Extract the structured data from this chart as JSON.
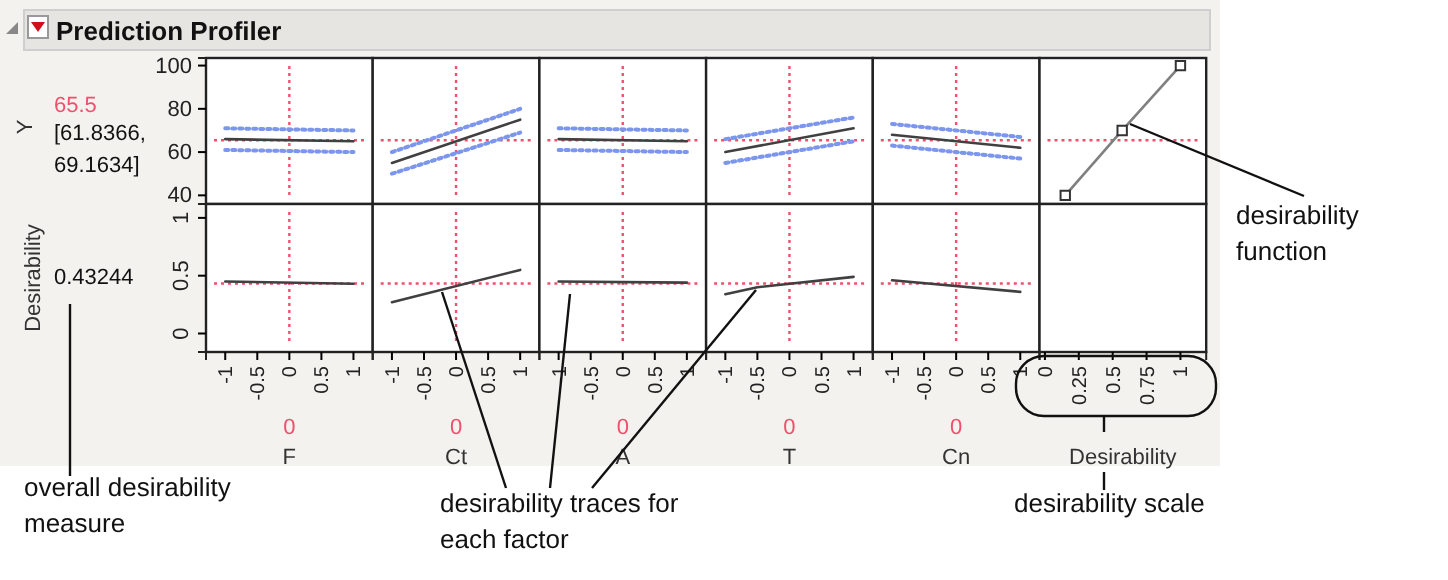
{
  "chart_data": [
    {
      "type": "line",
      "title": "Prediction Profiler",
      "ylabel": "Y",
      "annotations": [
        "65.5",
        "[61.8366, 69.1634]"
      ],
      "xlim": [
        -1.3,
        1.3
      ],
      "xticks": [
        -1,
        -0.5,
        0,
        0.5,
        1
      ],
      "ylim": [
        36,
        103.5
      ],
      "yticks": [
        40,
        60,
        80,
        100
      ],
      "tick_labels": "y",
      "ref_lines": [
        {
          "axis": "x",
          "value": 0,
          "color": "#f0506e",
          "line_style": "dotted"
        },
        {
          "axis": "y",
          "value": 65.5,
          "color": "#f0506e",
          "line_style": "dotted"
        }
      ],
      "series": [
        {
          "color": "#404040",
          "x": [
            -1,
            1
          ],
          "values": [
            66,
            65
          ]
        },
        {
          "color": "#7b96ec",
          "line_style": "dotted",
          "x": [
            -1,
            1
          ],
          "values": [
            71,
            70
          ]
        },
        {
          "color": "#7b96ec",
          "line_style": "dotted",
          "x": [
            -1,
            1
          ],
          "values": [
            61,
            60
          ]
        }
      ]
    },
    {
      "type": "line",
      "xlim": [
        -1.3,
        1.3
      ],
      "xticks": [
        -1,
        -0.5,
        0,
        0.5,
        1
      ],
      "ylim": [
        36,
        103.5
      ],
      "yticks": [
        40,
        60,
        80,
        100
      ],
      "tick_labels": false,
      "ref_lines": [
        {
          "axis": "x",
          "value": 0,
          "color": "#f0506e",
          "line_style": "dotted"
        },
        {
          "axis": "y",
          "value": 65.5,
          "color": "#f0506e",
          "line_style": "dotted"
        }
      ],
      "series": [
        {
          "color": "#404040",
          "x": [
            -1,
            1
          ],
          "values": [
            55,
            75
          ]
        },
        {
          "color": "#7b96ec",
          "line_style": "dotted",
          "x": [
            -1,
            1
          ],
          "values": [
            60,
            80
          ]
        },
        {
          "color": "#7b96ec",
          "line_style": "dotted",
          "x": [
            -1,
            1
          ],
          "values": [
            50,
            69
          ]
        }
      ]
    },
    {
      "type": "line",
      "xlim": [
        -1.3,
        1.3
      ],
      "xticks": [
        -1,
        -0.5,
        0,
        0.5,
        1
      ],
      "ylim": [
        36,
        103.5
      ],
      "yticks": [
        40,
        60,
        80,
        100
      ],
      "tick_labels": false,
      "ref_lines": [
        {
          "axis": "x",
          "value": 0,
          "color": "#f0506e",
          "line_style": "dotted"
        },
        {
          "axis": "y",
          "value": 65.5,
          "color": "#f0506e",
          "line_style": "dotted"
        }
      ],
      "series": [
        {
          "color": "#404040",
          "x": [
            -1,
            1
          ],
          "values": [
            66,
            65
          ]
        },
        {
          "color": "#7b96ec",
          "line_style": "dotted",
          "x": [
            -1,
            1
          ],
          "values": [
            71,
            70
          ]
        },
        {
          "color": "#7b96ec",
          "line_style": "dotted",
          "x": [
            -1,
            1
          ],
          "values": [
            61,
            60
          ]
        }
      ]
    },
    {
      "type": "line",
      "xlim": [
        -1.3,
        1.3
      ],
      "xticks": [
        -1,
        -0.5,
        0,
        0.5,
        1
      ],
      "ylim": [
        36,
        103.5
      ],
      "yticks": [
        40,
        60,
        80,
        100
      ],
      "tick_labels": false,
      "ref_lines": [
        {
          "axis": "x",
          "value": 0,
          "color": "#f0506e",
          "line_style": "dotted"
        },
        {
          "axis": "y",
          "value": 65.5,
          "color": "#f0506e",
          "line_style": "dotted"
        }
      ],
      "series": [
        {
          "color": "#404040",
          "x": [
            -1,
            1
          ],
          "values": [
            60,
            71
          ]
        },
        {
          "color": "#7b96ec",
          "line_style": "dotted",
          "x": [
            -1,
            1
          ],
          "values": [
            66,
            76
          ]
        },
        {
          "color": "#7b96ec",
          "line_style": "dotted",
          "x": [
            -1,
            1
          ],
          "values": [
            55,
            65
          ]
        }
      ]
    },
    {
      "type": "line",
      "xlim": [
        -1.3,
        1.3
      ],
      "xticks": [
        -1,
        -0.5,
        0,
        0.5,
        1
      ],
      "ylim": [
        36,
        103.5
      ],
      "yticks": [
        40,
        60,
        80,
        100
      ],
      "tick_labels": false,
      "ref_lines": [
        {
          "axis": "x",
          "value": 0,
          "color": "#f0506e",
          "line_style": "dotted"
        },
        {
          "axis": "y",
          "value": 65.5,
          "color": "#f0506e",
          "line_style": "dotted"
        }
      ],
      "series": [
        {
          "color": "#404040",
          "x": [
            -1,
            1
          ],
          "values": [
            68,
            62
          ]
        },
        {
          "color": "#7b96ec",
          "line_style": "dotted",
          "x": [
            -1,
            1
          ],
          "values": [
            73,
            67
          ]
        },
        {
          "color": "#7b96ec",
          "line_style": "dotted",
          "x": [
            -1,
            1
          ],
          "values": [
            63,
            57
          ]
        }
      ]
    },
    {
      "type": "line",
      "annotations": [
        "desirability function"
      ],
      "xlim": [
        -0.04,
        1.19
      ],
      "xticks": [
        0,
        0.25,
        0.5,
        0.75,
        1
      ],
      "ylim": [
        36,
        103.5
      ],
      "yticks": [
        40,
        60,
        80,
        100
      ],
      "tick_labels": false,
      "marker": "square",
      "ref_lines": [
        {
          "axis": "y",
          "value": 65.5,
          "color": "#f0506e",
          "line_style": "dotted"
        }
      ],
      "series": [
        {
          "color": "#808080",
          "x": [
            0.15,
            0.57,
            1
          ],
          "values": [
            40,
            70,
            100
          ]
        }
      ]
    },
    {
      "type": "line",
      "xlabel": "F",
      "ylabel": "Desirability",
      "annotations": [
        "0",
        "0.43244",
        "overall desirability measure"
      ],
      "xlim": [
        -1.3,
        1.3
      ],
      "xticks": [
        -1,
        -0.5,
        0,
        0.5,
        1
      ],
      "ylim": [
        -0.16,
        1.12
      ],
      "yticks": [
        0,
        0.5,
        1
      ],
      "ref_lines": [
        {
          "axis": "x",
          "value": 0,
          "color": "#f0506e",
          "line_style": "dotted"
        },
        {
          "axis": "y",
          "value": 0.43244,
          "color": "#f0506e",
          "line_style": "dotted"
        }
      ],
      "series": [
        {
          "color": "#404040",
          "x": [
            -1,
            1
          ],
          "values": [
            0.45,
            0.43
          ]
        }
      ]
    },
    {
      "type": "line",
      "xlabel": "Ct",
      "annotations": [
        "0",
        "desirability traces for each factor"
      ],
      "xlim": [
        -1.3,
        1.3
      ],
      "xticks": [
        -1,
        -0.5,
        0,
        0.5,
        1
      ],
      "ylim": [
        -0.16,
        1.12
      ],
      "yticks": [
        0,
        0.5,
        1
      ],
      "tick_labels": "x",
      "ref_lines": [
        {
          "axis": "x",
          "value": 0,
          "color": "#f0506e",
          "line_style": "dotted"
        },
        {
          "axis": "y",
          "value": 0.43244,
          "color": "#f0506e",
          "line_style": "dotted"
        }
      ],
      "series": [
        {
          "color": "#404040",
          "x": [
            -1,
            1
          ],
          "values": [
            0.27,
            0.55
          ]
        }
      ]
    },
    {
      "type": "line",
      "xlabel": "A",
      "annotations": [
        "0"
      ],
      "xlim": [
        -1.3,
        1.3
      ],
      "xticks": [
        -1,
        -0.5,
        0,
        0.5,
        1
      ],
      "ylim": [
        -0.16,
        1.12
      ],
      "yticks": [
        0,
        0.5,
        1
      ],
      "tick_labels": "x",
      "ref_lines": [
        {
          "axis": "x",
          "value": 0,
          "color": "#f0506e",
          "line_style": "dotted"
        },
        {
          "axis": "y",
          "value": 0.43244,
          "color": "#f0506e",
          "line_style": "dotted"
        }
      ],
      "series": [
        {
          "color": "#404040",
          "x": [
            -1,
            1
          ],
          "values": [
            0.45,
            0.44
          ]
        }
      ]
    },
    {
      "type": "line",
      "xlabel": "T",
      "annotations": [
        "0"
      ],
      "xlim": [
        -1.3,
        1.3
      ],
      "xticks": [
        -1,
        -0.5,
        0,
        0.5,
        1
      ],
      "ylim": [
        -0.16,
        1.12
      ],
      "yticks": [
        0,
        0.5,
        1
      ],
      "tick_labels": "x",
      "ref_lines": [
        {
          "axis": "x",
          "value": 0,
          "color": "#f0506e",
          "line_style": "dotted"
        },
        {
          "axis": "y",
          "value": 0.43244,
          "color": "#f0506e",
          "line_style": "dotted"
        }
      ],
      "series": [
        {
          "color": "#404040",
          "x": [
            -1,
            -0.5,
            1
          ],
          "values": [
            0.34,
            0.4,
            0.49
          ]
        }
      ]
    },
    {
      "type": "line",
      "xlabel": "Cn",
      "annotations": [
        "0"
      ],
      "xlim": [
        -1.3,
        1.3
      ],
      "xticks": [
        -1,
        -0.5,
        0,
        0.5,
        1
      ],
      "ylim": [
        -0.16,
        1.12
      ],
      "yticks": [
        0,
        0.5,
        1
      ],
      "tick_labels": "x",
      "ref_lines": [
        {
          "axis": "x",
          "value": 0,
          "color": "#f0506e",
          "line_style": "dotted"
        },
        {
          "axis": "y",
          "value": 0.43244,
          "color": "#f0506e",
          "line_style": "dotted"
        }
      ],
      "series": [
        {
          "color": "#404040",
          "x": [
            -1,
            1
          ],
          "values": [
            0.46,
            0.36
          ]
        }
      ]
    },
    {
      "type": "line",
      "xlabel": "Desirability",
      "annotations": [
        "desirability scale"
      ],
      "xlim": [
        -0.04,
        1.19
      ],
      "xticks": [
        0,
        0.25,
        0.5,
        0.75,
        1
      ],
      "ylim": [
        -0.16,
        1.12
      ],
      "yticks": [
        0,
        0.5,
        1
      ],
      "tick_labels": "x"
    }
  ]
}
